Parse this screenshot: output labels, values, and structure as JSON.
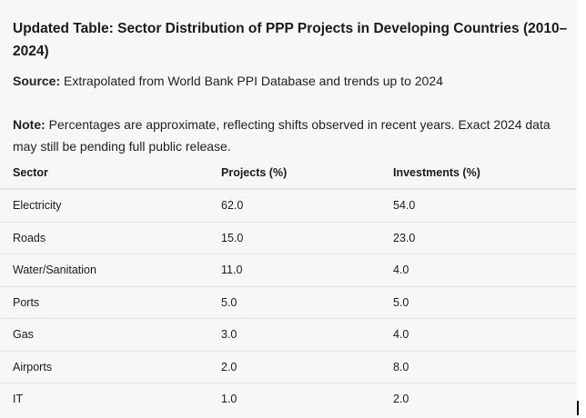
{
  "title": "Updated Table: Sector Distribution of PPP Projects in Developing Countries (2010–2024)",
  "source": {
    "label": "Source:",
    "text": " Extrapolated from World Bank PPI Database and trends up to 2024"
  },
  "note": {
    "label": "Note:",
    "text": " Percentages are approximate, reflecting shifts observed in recent years. Exact 2024 data may still be pending full public release."
  },
  "table": {
    "headers": [
      "Sector",
      "Projects (%)",
      "Investments (%)"
    ],
    "rows": [
      [
        "Electricity",
        "62.0",
        "54.0"
      ],
      [
        "Roads",
        "15.0",
        "23.0"
      ],
      [
        "Water/Sanitation",
        "11.0",
        "4.0"
      ],
      [
        "Ports",
        "5.0",
        "5.0"
      ],
      [
        "Gas",
        "3.0",
        "4.0"
      ],
      [
        "Airports",
        "2.0",
        "8.0"
      ],
      [
        "IT",
        "1.0",
        "2.0"
      ]
    ]
  }
}
